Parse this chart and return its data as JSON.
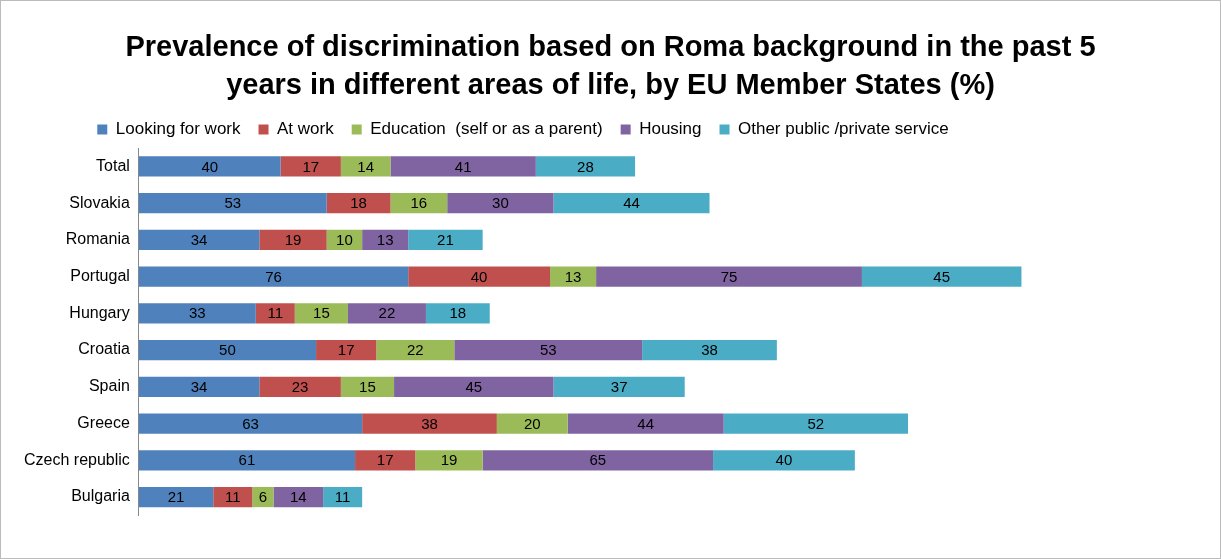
{
  "chart_data": {
    "type": "bar",
    "orientation": "horizontal",
    "stacked": true,
    "data_labels": true,
    "legend": "top",
    "grid": false,
    "title": "Prevalence of discrimination based on Roma background in the past 5 years in different areas of life, by EU Member States (%)",
    "categories": [
      "Total",
      "Slovakia",
      "Romania",
      "Portugal",
      "Hungary",
      "Croatia",
      "Spain",
      "Greece",
      "Czech republic",
      "Bulgaria"
    ],
    "series": [
      {
        "name": "Looking for work",
        "color": "#4f81bd",
        "values": [
          40,
          53,
          34,
          76,
          33,
          50,
          34,
          63,
          61,
          21
        ]
      },
      {
        "name": "At work",
        "color": "#c0504d",
        "values": [
          17,
          18,
          19,
          40,
          11,
          17,
          23,
          38,
          17,
          11
        ]
      },
      {
        "name": "Education  (self or as a parent)",
        "color": "#9bbb59",
        "values": [
          14,
          16,
          10,
          13,
          15,
          22,
          15,
          20,
          19,
          6
        ]
      },
      {
        "name": "Housing",
        "color": "#8064a2",
        "values": [
          41,
          30,
          13,
          75,
          22,
          53,
          45,
          44,
          65,
          14
        ]
      },
      {
        "name": "Other public /private service",
        "color": "#4bacc6",
        "values": [
          28,
          44,
          21,
          45,
          18,
          38,
          37,
          52,
          40,
          11
        ]
      }
    ]
  }
}
